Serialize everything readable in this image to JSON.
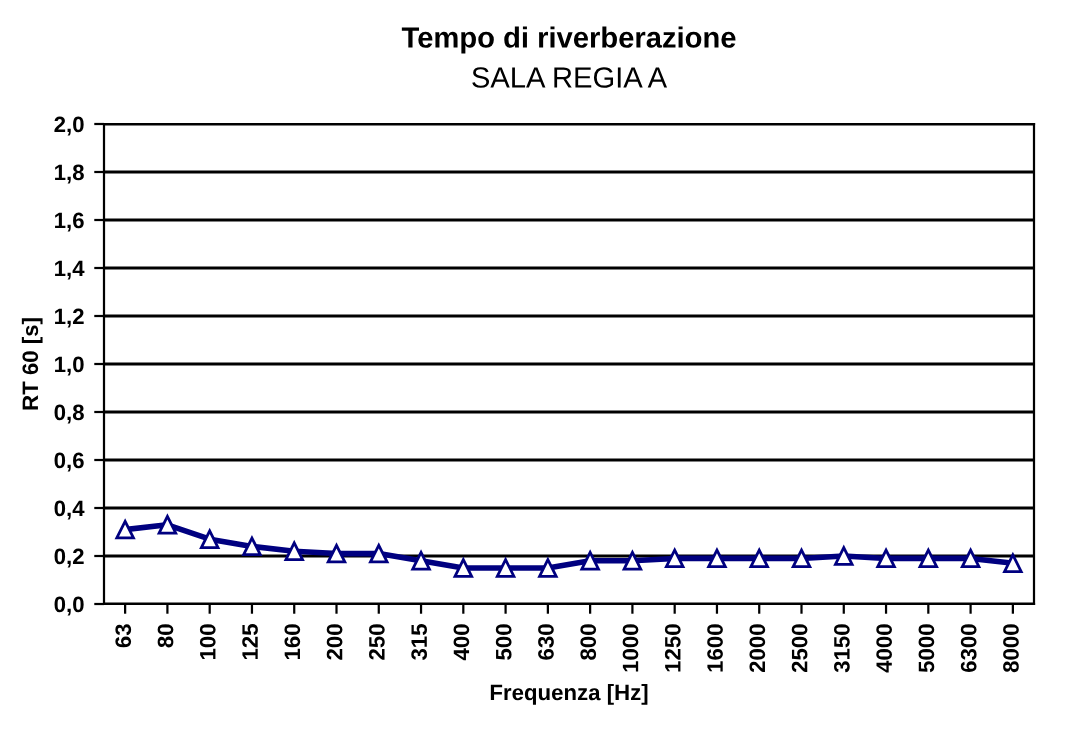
{
  "chart_data": {
    "type": "line",
    "title": "Tempo di riverberazione",
    "subtitle": "SALA REGIA A",
    "xlabel": "Frequenza [Hz]",
    "ylabel": "RT 60 [s]",
    "categories": [
      "63",
      "80",
      "100",
      "125",
      "160",
      "200",
      "250",
      "315",
      "400",
      "500",
      "630",
      "800",
      "1000",
      "1250",
      "1600",
      "2000",
      "2500",
      "3150",
      "4000",
      "5000",
      "6300",
      "8000"
    ],
    "series": [
      {
        "color": "#000080",
        "values": [
          0.31,
          0.33,
          0.27,
          0.24,
          0.22,
          0.21,
          0.21,
          0.18,
          0.15,
          0.15,
          0.15,
          0.18,
          0.18,
          0.19,
          0.19,
          0.19,
          0.19,
          0.2,
          0.19,
          0.19,
          0.19,
          0.17
        ]
      }
    ],
    "ylim": [
      0,
      2
    ],
    "yticks": [
      {
        "value": 0,
        "label": "0,0"
      },
      {
        "value": 0.2,
        "label": "0,2"
      },
      {
        "value": 0.4,
        "label": "0,4"
      },
      {
        "value": 0.6,
        "label": "0,6"
      },
      {
        "value": 0.8,
        "label": "0,8"
      },
      {
        "value": 1.0,
        "label": "1,0"
      },
      {
        "value": 1.2,
        "label": "1,2"
      },
      {
        "value": 1.4,
        "label": "1,4"
      },
      {
        "value": 1.6,
        "label": "1,6"
      },
      {
        "value": 1.8,
        "label": "1,8"
      },
      {
        "value": 2.0,
        "label": "2,0"
      }
    ],
    "grid": "y",
    "marker": "triangle",
    "line_style": "solid"
  }
}
